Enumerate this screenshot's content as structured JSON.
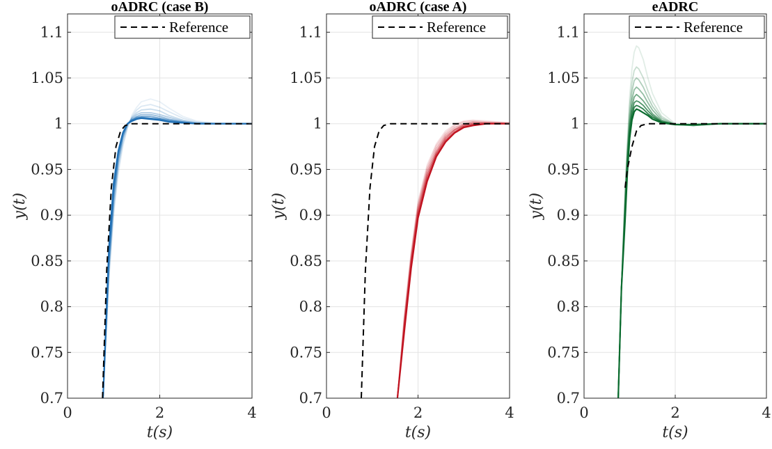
{
  "chart_data": [
    {
      "type": "line",
      "title": "oADRC (case B)",
      "xlabel": "t(s)",
      "ylabel": "y(t)",
      "xlim": [
        0,
        4
      ],
      "ylim": [
        0.7,
        1.12
      ],
      "xticks": [
        0,
        2,
        4
      ],
      "yticks": [
        0.7,
        0.75,
        0.8,
        0.85,
        0.9,
        0.95,
        1,
        1.05,
        1.1
      ],
      "grid": true,
      "legend": {
        "entries": [
          "Reference"
        ],
        "placement": "top-right"
      },
      "reference": {
        "name": "Reference",
        "x": [
          0.76,
          0.85,
          0.95,
          1.05,
          1.15,
          1.25,
          1.4,
          4
        ],
        "y": [
          0.7,
          0.84,
          0.93,
          0.975,
          0.992,
          0.998,
          1.0,
          1.0
        ]
      },
      "series_family": {
        "color": "#1f6fb5",
        "x": [
          0.77,
          0.9,
          1.0,
          1.1,
          1.2,
          1.3,
          1.4,
          1.5,
          1.6,
          1.8,
          2.0,
          2.2,
          2.5,
          2.8,
          3.2,
          4
        ],
        "runs": [
          {
            "opacity": 0.1,
            "y": [
              0.7,
              0.83,
              0.9,
              0.945,
              0.975,
              0.995,
              1.01,
              1.018,
              1.024,
              1.027,
              1.024,
              1.017,
              1.008,
              1.003,
              1.001,
              1.0
            ]
          },
          {
            "opacity": 0.16,
            "y": [
              0.7,
              0.835,
              0.905,
              0.95,
              0.978,
              0.996,
              1.008,
              1.015,
              1.019,
              1.021,
              1.018,
              1.013,
              1.006,
              1.002,
              1.0,
              1.0
            ]
          },
          {
            "opacity": 0.24,
            "y": [
              0.7,
              0.84,
              0.91,
              0.955,
              0.982,
              0.998,
              1.007,
              1.012,
              1.015,
              1.016,
              1.014,
              1.009,
              1.004,
              1.001,
              1.0,
              1.0
            ]
          },
          {
            "opacity": 0.34,
            "y": [
              0.7,
              0.845,
              0.915,
              0.958,
              0.984,
              0.999,
              1.006,
              1.01,
              1.012,
              1.012,
              1.01,
              1.007,
              1.003,
              1.001,
              1.0,
              1.0
            ]
          },
          {
            "opacity": 0.46,
            "y": [
              0.7,
              0.85,
              0.92,
              0.962,
              0.986,
              1.0,
              1.005,
              1.008,
              1.01,
              1.01,
              1.008,
              1.005,
              1.002,
              1.0,
              1.0,
              1.0
            ]
          },
          {
            "opacity": 0.6,
            "y": [
              0.7,
              0.855,
              0.925,
              0.965,
              0.988,
              1.0,
              1.004,
              1.007,
              1.008,
              1.008,
              1.006,
              1.004,
              1.002,
              1.0,
              1.0,
              1.0
            ]
          },
          {
            "opacity": 0.78,
            "y": [
              0.7,
              0.86,
              0.93,
              0.968,
              0.99,
              1.0,
              1.004,
              1.006,
              1.007,
              1.006,
              1.005,
              1.003,
              1.001,
              1.0,
              1.0,
              1.0
            ]
          },
          {
            "opacity": 1.0,
            "y": [
              0.7,
              0.865,
              0.935,
              0.97,
              0.99,
              1.0,
              1.003,
              1.005,
              1.006,
              1.005,
              1.004,
              1.002,
              1.001,
              1.0,
              1.0,
              1.0
            ]
          }
        ]
      }
    },
    {
      "type": "line",
      "title": "oADRC (case A)",
      "xlabel": "t(s)",
      "ylabel": "y(t)",
      "xlim": [
        0,
        4
      ],
      "ylim": [
        0.7,
        1.12
      ],
      "xticks": [
        0,
        2,
        4
      ],
      "yticks": [
        0.7,
        0.75,
        0.8,
        0.85,
        0.9,
        0.95,
        1,
        1.05,
        1.1
      ],
      "grid": true,
      "legend": {
        "entries": [
          "Reference"
        ],
        "placement": "top-right"
      },
      "reference": {
        "name": "Reference",
        "x": [
          0.76,
          0.85,
          0.95,
          1.05,
          1.15,
          1.25,
          1.4,
          4
        ],
        "y": [
          0.7,
          0.84,
          0.93,
          0.975,
          0.992,
          0.998,
          1.0,
          1.0
        ]
      },
      "series_family": {
        "color": "#c0121f",
        "x": [
          1.55,
          1.7,
          1.85,
          2.0,
          2.2,
          2.4,
          2.6,
          2.8,
          3.0,
          3.2,
          3.5,
          4
        ],
        "runs": [
          {
            "opacity": 0.12,
            "y": [
              0.7,
              0.79,
              0.86,
              0.915,
              0.955,
              0.978,
              0.992,
              0.999,
              1.003,
              1.004,
              1.003,
              1.001
            ]
          },
          {
            "opacity": 0.2,
            "y": [
              0.7,
              0.788,
              0.857,
              0.912,
              0.952,
              0.976,
              0.99,
              0.998,
              1.002,
              1.003,
              1.002,
              1.001
            ]
          },
          {
            "opacity": 0.3,
            "y": [
              0.7,
              0.785,
              0.854,
              0.909,
              0.949,
              0.973,
              0.988,
              0.996,
              1.0,
              1.002,
              1.001,
              1.0
            ]
          },
          {
            "opacity": 0.42,
            "y": [
              0.7,
              0.782,
              0.851,
              0.906,
              0.946,
              0.97,
              0.986,
              0.994,
              0.999,
              1.001,
              1.001,
              1.0
            ]
          },
          {
            "opacity": 0.56,
            "y": [
              0.7,
              0.779,
              0.848,
              0.903,
              0.943,
              0.968,
              0.984,
              0.993,
              0.998,
              1.0,
              1.0,
              1.0
            ]
          },
          {
            "opacity": 0.72,
            "y": [
              0.7,
              0.776,
              0.845,
              0.9,
              0.94,
              0.966,
              0.982,
              0.991,
              0.997,
              0.999,
              1.0,
              1.0
            ]
          },
          {
            "opacity": 1.0,
            "y": [
              0.7,
              0.773,
              0.842,
              0.897,
              0.937,
              0.964,
              0.98,
              0.99,
              0.996,
              0.998,
              1.0,
              1.0
            ]
          }
        ]
      }
    },
    {
      "type": "line",
      "title": "eADRC",
      "xlabel": "t(s)",
      "ylabel": "y(t)",
      "xlim": [
        0,
        4
      ],
      "ylim": [
        0.7,
        1.12
      ],
      "xticks": [
        0,
        2,
        4
      ],
      "yticks": [
        0.7,
        0.75,
        0.8,
        0.85,
        0.9,
        0.95,
        1,
        1.05,
        1.1
      ],
      "grid": true,
      "legend": {
        "entries": [
          "Reference"
        ],
        "placement": "top-right"
      },
      "reference": {
        "name": "Reference",
        "x": [
          0.9,
          0.95,
          1.05,
          1.15,
          1.25,
          1.4,
          4
        ],
        "y": [
          0.93,
          0.95,
          0.975,
          0.992,
          0.998,
          1.0,
          1.0
        ]
      },
      "series_family": {
        "color": "#0a6b2e",
        "x": [
          0.75,
          0.82,
          0.9,
          0.95,
          1.0,
          1.05,
          1.1,
          1.15,
          1.2,
          1.3,
          1.4,
          1.5,
          1.7,
          2.0,
          2.4,
          3.0,
          4
        ],
        "runs": [
          {
            "opacity": 0.12,
            "y": [
              0.7,
              0.82,
              0.93,
              0.98,
              1.03,
              1.06,
              1.078,
              1.085,
              1.083,
              1.07,
              1.05,
              1.033,
              1.012,
              1.0,
              0.998,
              1.0,
              1.0
            ]
          },
          {
            "opacity": 0.22,
            "y": [
              0.7,
              0.82,
              0.925,
              0.975,
              1.02,
              1.045,
              1.058,
              1.062,
              1.06,
              1.05,
              1.036,
              1.024,
              1.008,
              0.999,
              0.998,
              1.0,
              1.0
            ]
          },
          {
            "opacity": 0.32,
            "y": [
              0.7,
              0.82,
              0.92,
              0.97,
              1.01,
              1.035,
              1.047,
              1.05,
              1.048,
              1.04,
              1.029,
              1.019,
              1.006,
              0.999,
              0.998,
              1.0,
              1.0
            ]
          },
          {
            "opacity": 0.44,
            "y": [
              0.7,
              0.82,
              0.915,
              0.965,
              1.003,
              1.026,
              1.037,
              1.04,
              1.038,
              1.032,
              1.023,
              1.015,
              1.004,
              0.999,
              0.998,
              1.0,
              1.0
            ]
          },
          {
            "opacity": 0.58,
            "y": [
              0.7,
              0.82,
              0.91,
              0.96,
              0.997,
              1.019,
              1.029,
              1.032,
              1.03,
              1.025,
              1.018,
              1.011,
              1.003,
              0.999,
              0.999,
              1.0,
              1.0
            ]
          },
          {
            "opacity": 0.72,
            "y": [
              0.7,
              0.82,
              0.905,
              0.955,
              0.992,
              1.013,
              1.023,
              1.025,
              1.024,
              1.02,
              1.014,
              1.009,
              1.002,
              0.999,
              0.999,
              1.0,
              1.0
            ]
          },
          {
            "opacity": 0.86,
            "y": [
              0.7,
              0.82,
              0.9,
              0.95,
              0.988,
              1.008,
              1.018,
              1.02,
              1.019,
              1.016,
              1.011,
              1.007,
              1.002,
              0.999,
              0.999,
              1.0,
              1.0
            ]
          },
          {
            "opacity": 1.0,
            "y": [
              0.7,
              0.82,
              0.895,
              0.946,
              0.984,
              1.004,
              1.013,
              1.016,
              1.015,
              1.012,
              1.009,
              1.005,
              1.001,
              0.999,
              0.999,
              1.0,
              1.0
            ]
          }
        ]
      }
    }
  ]
}
